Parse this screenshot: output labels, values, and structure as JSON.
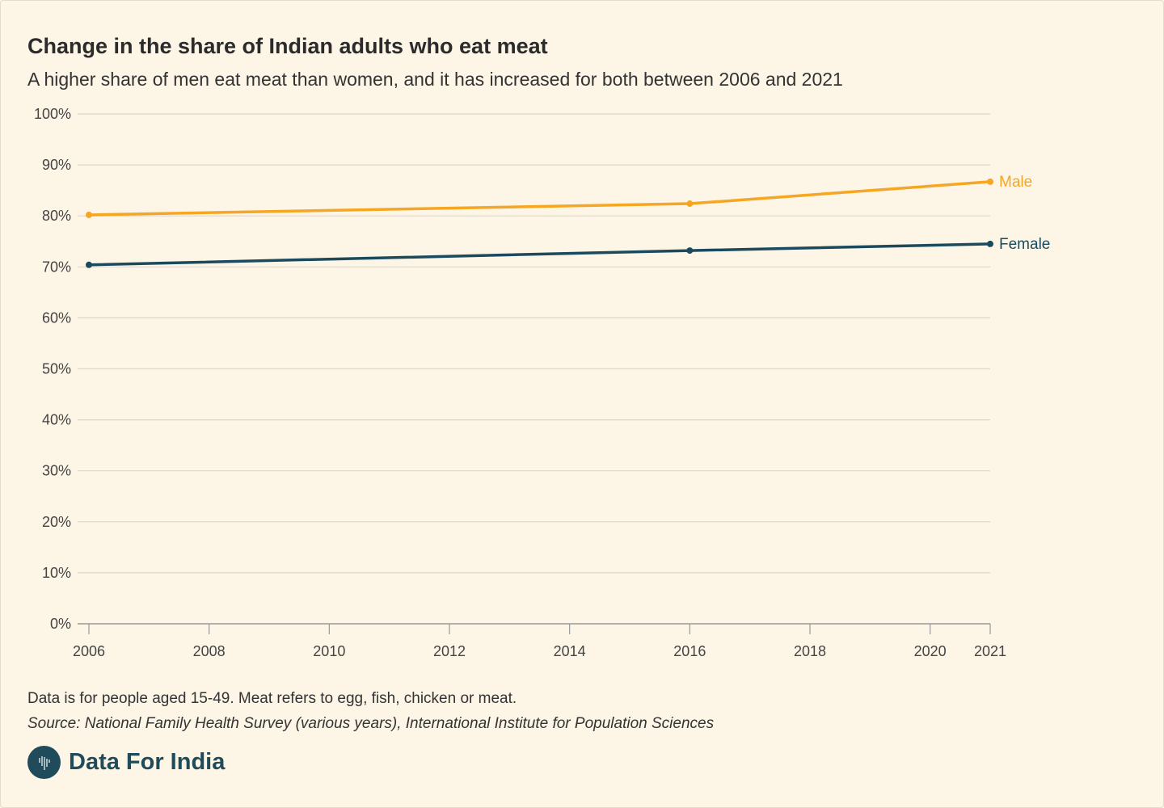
{
  "chart_data": {
    "type": "line",
    "title": "Change in the share of Indian adults who eat meat",
    "subtitle": "A higher share of men eat meat than women, and it has increased for both between 2006 and 2021",
    "x": [
      2006,
      2016,
      2021
    ],
    "xticks": [
      "2006",
      "2008",
      "2010",
      "2012",
      "2014",
      "2016",
      "2018",
      "2020",
      "2021"
    ],
    "xtick_values": [
      2006,
      2008,
      2010,
      2012,
      2014,
      2016,
      2018,
      2020,
      2021
    ],
    "yticks": [
      "0%",
      "10%",
      "20%",
      "30%",
      "40%",
      "50%",
      "60%",
      "70%",
      "80%",
      "90%",
      "100%"
    ],
    "ylim": [
      0,
      100
    ],
    "xlim": [
      2006,
      2021
    ],
    "grid": true,
    "series": [
      {
        "name": "Male",
        "color": "#f5a623",
        "values": [
          80.2,
          82.4,
          86.7
        ]
      },
      {
        "name": "Female",
        "color": "#1b4a5e",
        "values": [
          70.4,
          73.2,
          74.5
        ]
      }
    ]
  },
  "footer": {
    "note": "Data is for people aged 15-49. Meat refers to egg, fish, chicken or meat.",
    "source": "Source: National Family Health Survey (various years), International Institute for Population Sciences",
    "brand": "Data For India"
  }
}
